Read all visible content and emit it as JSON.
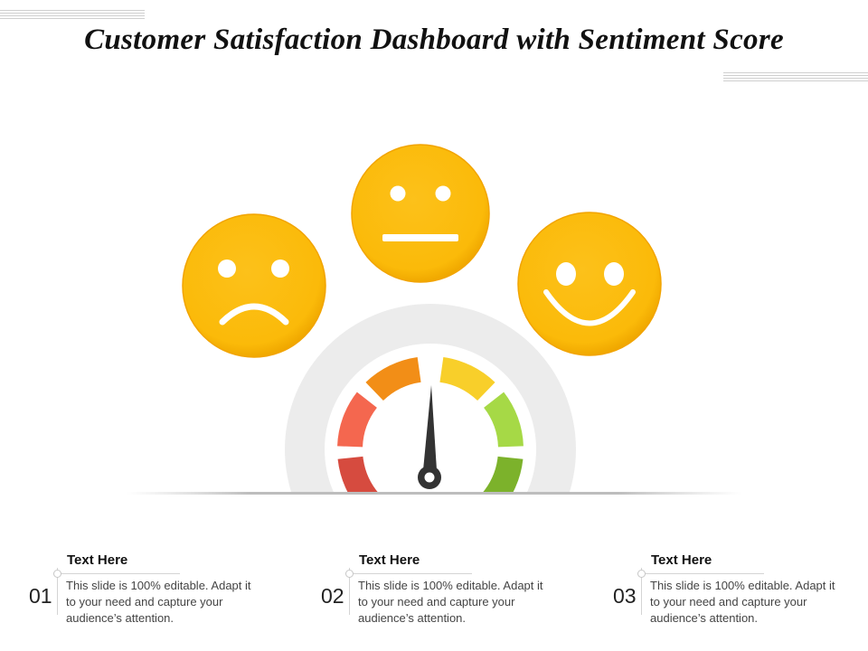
{
  "title": "Customer Satisfaction Dashboard with Sentiment Score",
  "faces": [
    {
      "icon": "sad-face-icon",
      "mood": "sad"
    },
    {
      "icon": "neutral-face-icon",
      "mood": "neutral"
    },
    {
      "icon": "happy-face-icon",
      "mood": "happy"
    }
  ],
  "gauge": {
    "icon": "gauge-icon",
    "segment_colors": [
      "#d64b3f",
      "#f4674f",
      "#f28e17",
      "#f8cf2a",
      "#a6d946",
      "#7cb22b"
    ],
    "needle_value": 0.49
  },
  "colors": {
    "face_fill": "#fbbb0a",
    "face_edge": "#f2a400",
    "needle": "#333333",
    "arc_track": "#ebebeb"
  },
  "items": [
    {
      "number": "01",
      "heading": "Text Here",
      "text": "This slide is 100% editable. Adapt it to your need and capture your audience’s attention."
    },
    {
      "number": "02",
      "heading": "Text Here",
      "text": "This slide is 100% editable. Adapt it to your need and capture your audience’s attention."
    },
    {
      "number": "03",
      "heading": "Text Here",
      "text": "This slide is 100% editable. Adapt it to your need and capture your audience’s attention."
    }
  ]
}
